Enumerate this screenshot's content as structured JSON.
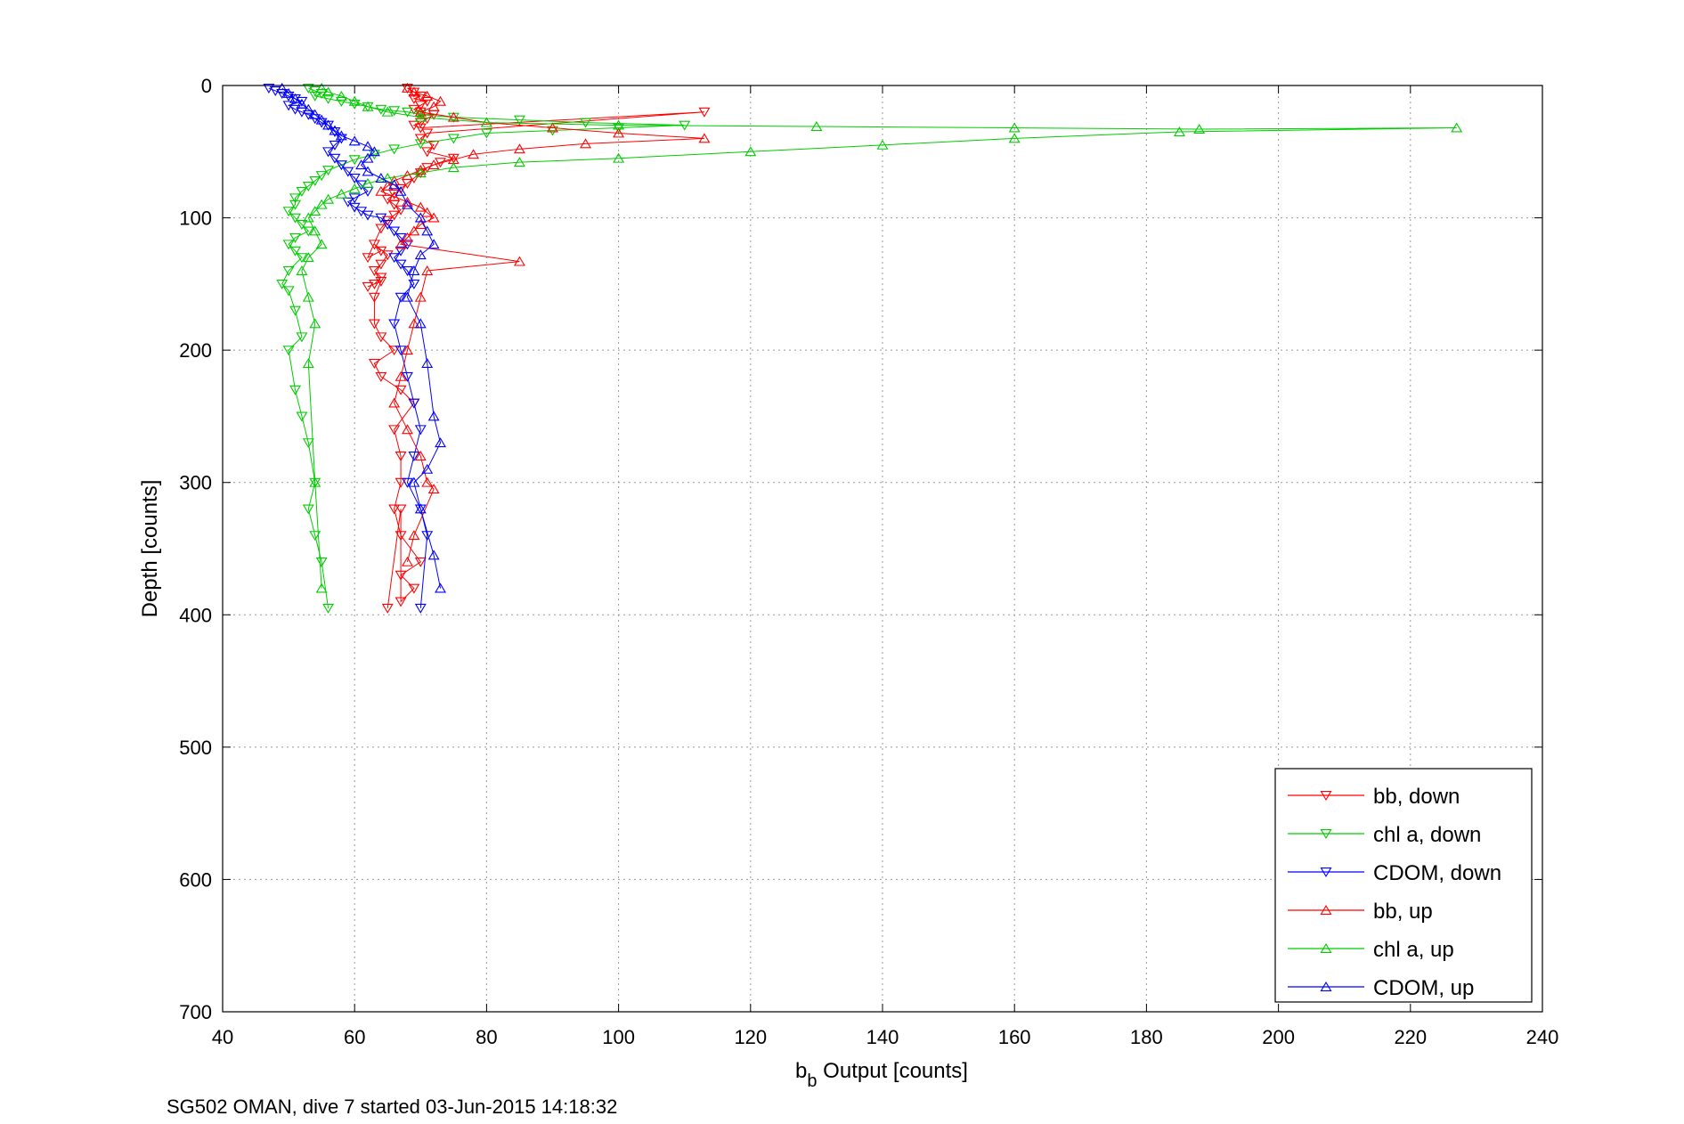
{
  "chart_data": {
    "type": "line",
    "caption": "SG502 OMAN, dive 7 started 03-Jun-2015 14:18:32",
    "xlabel_main": "b",
    "xlabel_sub": "b",
    "xlabel_rest": " Output [counts]",
    "ylabel": "Depth [counts]",
    "xlim": [
      40,
      240
    ],
    "ylim": [
      0,
      700
    ],
    "y_reversed": true,
    "grid": true,
    "legend_position": "bottom-right",
    "xticks": [
      40,
      60,
      80,
      100,
      120,
      140,
      160,
      180,
      200,
      220,
      240
    ],
    "yticks": [
      0,
      100,
      200,
      300,
      400,
      500,
      600,
      700
    ],
    "series": [
      {
        "name": "bb, down",
        "color": "#ff0000",
        "marker": "triangle-down",
        "x": [
          68,
          69,
          70,
          69,
          71,
          70,
          69,
          70,
          72,
          71,
          70,
          69,
          70,
          113,
          71,
          70,
          72,
          71,
          75,
          73,
          71,
          70,
          69,
          68,
          67,
          66,
          65,
          66,
          67,
          66,
          65,
          64,
          62,
          64,
          63,
          65,
          64,
          63,
          64,
          63,
          62,
          64,
          63,
          63,
          64,
          66,
          63,
          64,
          67,
          69,
          66,
          67,
          67,
          66,
          67,
          70,
          67,
          69,
          67,
          67,
          65
        ],
        "y": [
          2,
          5,
          8,
          10,
          12,
          15,
          18,
          20,
          22,
          25,
          28,
          30,
          32,
          20,
          36,
          40,
          45,
          50,
          55,
          58,
          62,
          66,
          70,
          74,
          78,
          82,
          86,
          90,
          94,
          98,
          102,
          108,
          130,
          125,
          120,
          128,
          135,
          140,
          145,
          150,
          152,
          148,
          160,
          180,
          190,
          200,
          210,
          220,
          230,
          240,
          260,
          280,
          300,
          320,
          340,
          360,
          370,
          380,
          390,
          320,
          395
        ]
      },
      {
        "name": "chl a, down",
        "color": "#00cc00",
        "marker": "triangle-down",
        "x": [
          53,
          54,
          55,
          54,
          56,
          58,
          60,
          62,
          64,
          66,
          68,
          70,
          75,
          85,
          95,
          110,
          100,
          90,
          80,
          75,
          70,
          66,
          63,
          60,
          58,
          56,
          55,
          54,
          53,
          52,
          51,
          51,
          50,
          51,
          52,
          53,
          51,
          50,
          51,
          52,
          50,
          49,
          50,
          51,
          52,
          50,
          51,
          52,
          53,
          54,
          53,
          54,
          55,
          56
        ],
        "y": [
          2,
          4,
          6,
          8,
          10,
          12,
          14,
          16,
          18,
          19,
          20,
          22,
          24,
          26,
          28,
          30,
          32,
          34,
          36,
          40,
          44,
          48,
          52,
          56,
          60,
          64,
          68,
          72,
          76,
          80,
          85,
          90,
          95,
          100,
          105,
          110,
          115,
          120,
          125,
          130,
          140,
          150,
          155,
          170,
          190,
          200,
          230,
          250,
          270,
          300,
          320,
          340,
          360,
          395
        ]
      },
      {
        "name": "CDOM, down",
        "color": "#0000ff",
        "marker": "triangle-down",
        "x": [
          47,
          48,
          49,
          50,
          51,
          52,
          50,
          51,
          52,
          53,
          54,
          55,
          56,
          57,
          58,
          57,
          56,
          57,
          58,
          59,
          60,
          61,
          62,
          60,
          59,
          60,
          61,
          62,
          64,
          65,
          66,
          67,
          68,
          67,
          66,
          67,
          68,
          69,
          67,
          66,
          67,
          68,
          69,
          70,
          69,
          68,
          70,
          71,
          70
        ],
        "y": [
          2,
          4,
          6,
          8,
          10,
          12,
          15,
          18,
          20,
          22,
          25,
          28,
          30,
          35,
          40,
          45,
          50,
          55,
          60,
          65,
          70,
          75,
          80,
          85,
          88,
          92,
          95,
          98,
          100,
          105,
          110,
          115,
          120,
          125,
          130,
          135,
          140,
          150,
          160,
          180,
          200,
          220,
          240,
          260,
          280,
          300,
          320,
          340,
          395
        ]
      },
      {
        "name": "bb, up",
        "color": "#ff0000",
        "marker": "triangle-up",
        "x": [
          68,
          69,
          71,
          73,
          72,
          70,
          75,
          80,
          90,
          100,
          113,
          95,
          85,
          78,
          75,
          72,
          70,
          68,
          66,
          65,
          64,
          66,
          68,
          70,
          71,
          72,
          70,
          69,
          68,
          67,
          85,
          71,
          70,
          69,
          68,
          67,
          66,
          68,
          70,
          71,
          72,
          69,
          68
        ],
        "y": [
          2,
          5,
          8,
          12,
          16,
          20,
          24,
          28,
          32,
          36,
          40,
          44,
          48,
          52,
          56,
          60,
          64,
          68,
          72,
          76,
          80,
          84,
          88,
          92,
          96,
          100,
          105,
          110,
          115,
          120,
          133,
          140,
          160,
          180,
          200,
          220,
          240,
          260,
          280,
          300,
          305,
          340,
          360
        ]
      },
      {
        "name": "chl a, up",
        "color": "#00cc00",
        "marker": "triangle-up",
        "x": [
          55,
          56,
          58,
          60,
          62,
          65,
          70,
          80,
          100,
          130,
          160,
          188,
          227,
          185,
          160,
          140,
          120,
          100,
          85,
          75,
          70,
          65,
          62,
          60,
          58,
          56,
          55,
          54,
          53,
          54,
          55,
          53,
          52,
          53,
          54,
          53,
          54,
          55
        ],
        "y": [
          2,
          5,
          8,
          12,
          16,
          20,
          24,
          28,
          30,
          31,
          32,
          33,
          32,
          35,
          40,
          45,
          50,
          55,
          58,
          62,
          66,
          70,
          74,
          78,
          82,
          86,
          90,
          95,
          100,
          110,
          120,
          130,
          140,
          160,
          180,
          210,
          300,
          380
        ]
      },
      {
        "name": "CDOM, up",
        "color": "#0000ff",
        "marker": "triangle-up",
        "x": [
          49,
          50,
          51,
          52,
          53,
          54,
          55,
          56,
          57,
          58,
          60,
          62,
          63,
          62,
          61,
          62,
          64,
          66,
          67,
          68,
          70,
          71,
          72,
          70,
          69,
          68,
          70,
          71,
          72,
          73,
          71,
          69,
          70,
          72,
          73
        ],
        "y": [
          2,
          6,
          10,
          14,
          18,
          22,
          26,
          30,
          34,
          38,
          42,
          46,
          50,
          55,
          60,
          65,
          70,
          75,
          80,
          90,
          100,
          110,
          120,
          128,
          140,
          160,
          180,
          210,
          250,
          270,
          290,
          300,
          320,
          355,
          380
        ]
      }
    ]
  }
}
